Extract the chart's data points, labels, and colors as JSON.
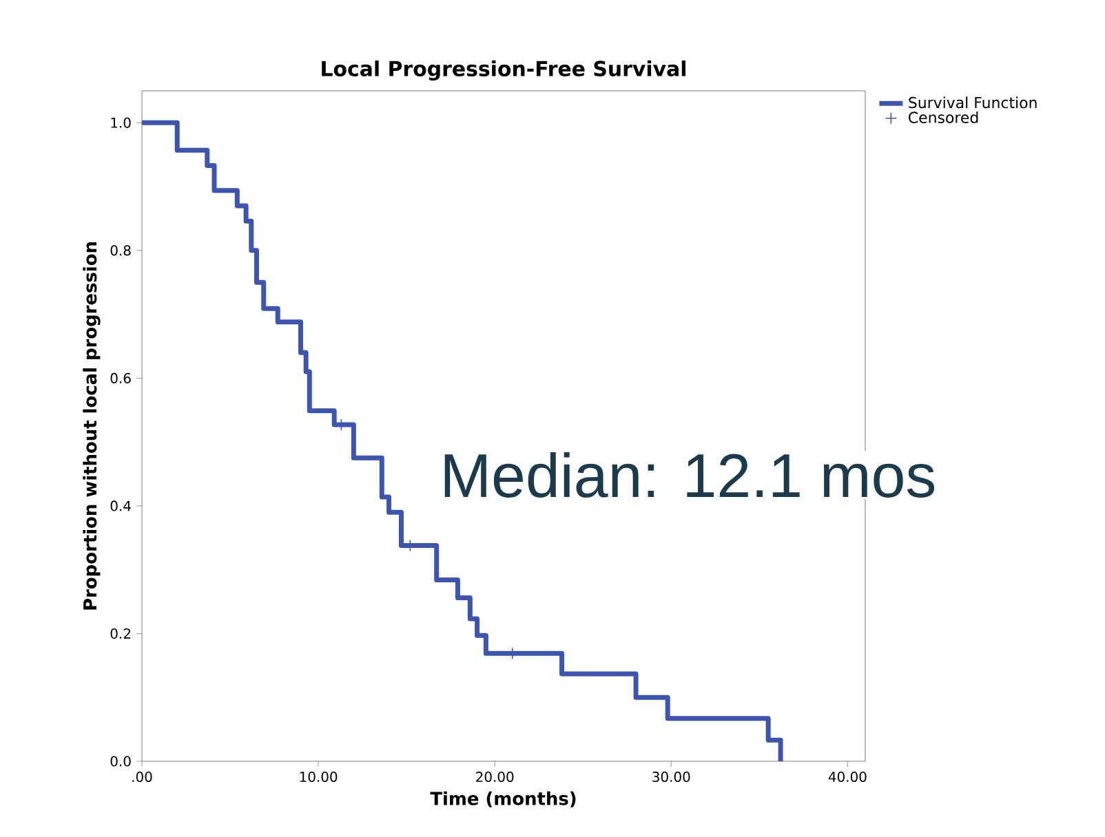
{
  "chart_data": {
    "type": "step",
    "title": "Local Progression-Free Survival",
    "xlabel": "Time (months)",
    "ylabel": "Proportion without local progression",
    "series": [
      {
        "name": "Survival Function",
        "color": "#3d55b0",
        "x": [
          0,
          2.0,
          3.7,
          4.1,
          5.4,
          5.9,
          6.2,
          6.5,
          6.9,
          7.7,
          9.0,
          9.3,
          9.5,
          10.9,
          12.0,
          13.6,
          14.0,
          14.7,
          16.7,
          17.9,
          18.6,
          19.0,
          19.5,
          23.8,
          28.0,
          29.8,
          35.5,
          36.2
        ],
        "values": [
          1.0,
          0.957,
          0.933,
          0.894,
          0.87,
          0.846,
          0.8,
          0.75,
          0.709,
          0.688,
          0.64,
          0.61,
          0.549,
          0.527,
          0.475,
          0.414,
          0.39,
          0.338,
          0.284,
          0.256,
          0.223,
          0.197,
          0.169,
          0.137,
          0.1,
          0.067,
          0.033,
          0.0
        ]
      },
      {
        "name": "Censored",
        "type": "scatter",
        "marker": "cross",
        "color": "#3d55b0",
        "x": [
          11.3,
          15.2,
          21.0
        ],
        "values": [
          0.527,
          0.338,
          0.169
        ]
      }
    ],
    "xlim": [
      0,
      41
    ],
    "ylim": [
      0,
      1.05
    ],
    "xticks": [
      {
        "value": 0,
        "label": ".00"
      },
      {
        "value": 10,
        "label": "10.00"
      },
      {
        "value": 20,
        "label": "20.00"
      },
      {
        "value": 30,
        "label": "30.00"
      },
      {
        "value": 40,
        "label": "40.00"
      }
    ],
    "yticks": [
      {
        "value": 0,
        "label": "0.0"
      },
      {
        "value": 0.2,
        "label": "0.2"
      },
      {
        "value": 0.4,
        "label": "0.4"
      },
      {
        "value": 0.6,
        "label": "0.6"
      },
      {
        "value": 0.8,
        "label": "0.8"
      },
      {
        "value": 1.0,
        "label": "1.0"
      }
    ],
    "legend": "top right",
    "annotations": [
      "Median: 12.1 mos"
    ]
  }
}
